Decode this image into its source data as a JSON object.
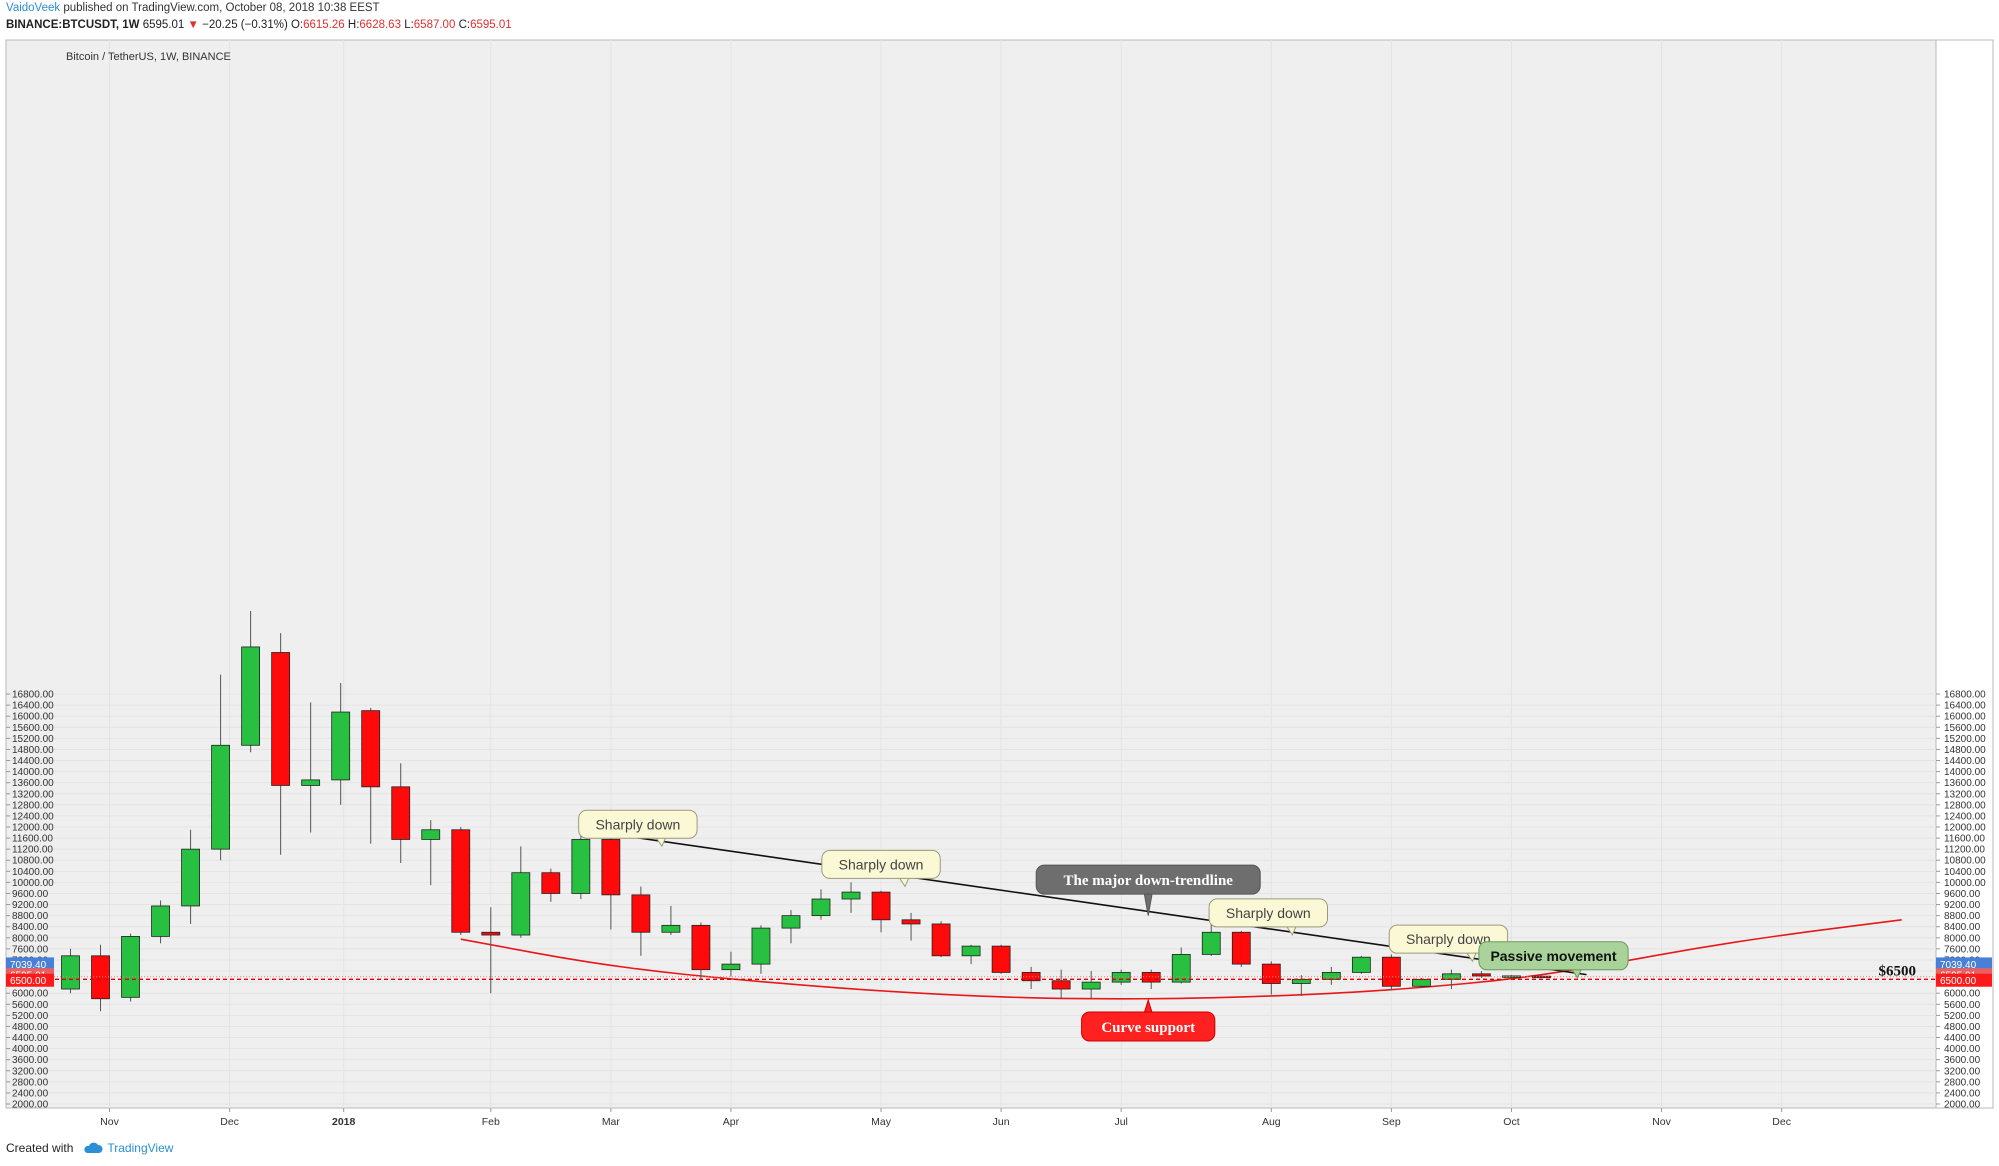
{
  "header": {
    "user": "VaidoVeek",
    "published": "published on TradingView.com, October 08, 2018 10:38 EEST",
    "symbol": "BINANCE:BTCUSDT, 1W",
    "last": "6595.01",
    "change": "−20.25 (−0.31%)",
    "o_label": "O:",
    "o": "6615.26",
    "h_label": "H:",
    "h": "6628.63",
    "l_label": "L:",
    "l": "6587.00",
    "c_label": "C:",
    "c": "6595.01"
  },
  "footer": {
    "created_with": "Created with",
    "brand": "TradingView"
  },
  "colors": {
    "up": "#27c040",
    "down": "#ff0a0a",
    "background": "#efefef",
    "trendline": "#111111",
    "curve": "#e81818"
  },
  "chart_data": {
    "type": "candlestick",
    "title": "Bitcoin / TetherUS, 1W, BINANCE",
    "ylim": [
      1900,
      17200
    ],
    "y_ticks": [
      "16800.00",
      "16400.00",
      "16000.00",
      "15600.00",
      "15200.00",
      "14800.00",
      "14400.00",
      "14000.00",
      "13600.00",
      "13200.00",
      "12800.00",
      "12400.00",
      "12000.00",
      "11600.00",
      "11200.00",
      "10800.00",
      "10400.00",
      "10000.00",
      "9600.00",
      "9200.00",
      "8800.00",
      "8400.00",
      "8000.00",
      "7600.00",
      "7200.00",
      "6800.00",
      "6400.00",
      "6000.00",
      "5600.00",
      "5200.00",
      "4800.00",
      "4400.00",
      "4000.00",
      "3600.00",
      "3200.00",
      "2800.00",
      "2400.00",
      "2000.00"
    ],
    "x_labels": [
      {
        "label": "Nov",
        "week": 1.3
      },
      {
        "label": "Dec",
        "week": 5.3
      },
      {
        "label": "2018",
        "week": 9.1
      },
      {
        "label": "Feb",
        "week": 14.0
      },
      {
        "label": "Mar",
        "week": 18.0
      },
      {
        "label": "Apr",
        "week": 22.0
      },
      {
        "label": "May",
        "week": 27.0
      },
      {
        "label": "Jun",
        "week": 31.0
      },
      {
        "label": "Jul",
        "week": 35.0
      },
      {
        "label": "Aug",
        "week": 40.0
      },
      {
        "label": "Sep",
        "week": 44.0
      },
      {
        "label": "Oct",
        "week": 48.0
      },
      {
        "label": "Nov",
        "week": 53.0
      },
      {
        "label": "Dec",
        "week": 57.0
      }
    ],
    "candles": [
      {
        "o": 6150,
        "h": 7600,
        "l": 6000,
        "c": 7350
      },
      {
        "o": 7350,
        "h": 7750,
        "l": 5350,
        "c": 5800
      },
      {
        "o": 5850,
        "h": 8150,
        "l": 5700,
        "c": 8050
      },
      {
        "o": 8050,
        "h": 9350,
        "l": 7800,
        "c": 9150
      },
      {
        "o": 9150,
        "h": 11900,
        "l": 8500,
        "c": 11200
      },
      {
        "o": 11200,
        "h": 17500,
        "l": 10800,
        "c": 14950
      },
      {
        "o": 14950,
        "h": 19800,
        "l": 14700,
        "c": 18500
      },
      {
        "o": 18300,
        "h": 19000,
        "l": 11000,
        "c": 13500
      },
      {
        "o": 13500,
        "h": 16500,
        "l": 11800,
        "c": 13700
      },
      {
        "o": 13700,
        "h": 17200,
        "l": 12800,
        "c": 16150
      },
      {
        "o": 16200,
        "h": 16300,
        "l": 11400,
        "c": 13450
      },
      {
        "o": 13450,
        "h": 14300,
        "l": 10700,
        "c": 11550
      },
      {
        "o": 11550,
        "h": 12250,
        "l": 9900,
        "c": 11900
      },
      {
        "o": 11900,
        "h": 12000,
        "l": 8100,
        "c": 8200
      },
      {
        "o": 8200,
        "h": 9100,
        "l": 6000,
        "c": 8100
      },
      {
        "o": 8100,
        "h": 11300,
        "l": 8000,
        "c": 10350
      },
      {
        "o": 10350,
        "h": 10500,
        "l": 9300,
        "c": 9600
      },
      {
        "o": 9600,
        "h": 11750,
        "l": 9400,
        "c": 11550
      },
      {
        "o": 11550,
        "h": 11750,
        "l": 8300,
        "c": 9550
      },
      {
        "o": 9550,
        "h": 9850,
        "l": 7350,
        "c": 8200
      },
      {
        "o": 8200,
        "h": 9150,
        "l": 8100,
        "c": 8450
      },
      {
        "o": 8450,
        "h": 8550,
        "l": 6500,
        "c": 6850
      },
      {
        "o": 6850,
        "h": 7500,
        "l": 6600,
        "c": 7050
      },
      {
        "o": 7050,
        "h": 8450,
        "l": 6700,
        "c": 8350
      },
      {
        "o": 8350,
        "h": 9000,
        "l": 7800,
        "c": 8800
      },
      {
        "o": 8800,
        "h": 9750,
        "l": 8650,
        "c": 9400
      },
      {
        "o": 9400,
        "h": 10000,
        "l": 8900,
        "c": 9650
      },
      {
        "o": 9650,
        "h": 9700,
        "l": 8200,
        "c": 8650
      },
      {
        "o": 8650,
        "h": 8900,
        "l": 7900,
        "c": 8500
      },
      {
        "o": 8500,
        "h": 8600,
        "l": 7300,
        "c": 7350
      },
      {
        "o": 7350,
        "h": 7750,
        "l": 7050,
        "c": 7700
      },
      {
        "o": 7700,
        "h": 7750,
        "l": 6700,
        "c": 6750
      },
      {
        "o": 6750,
        "h": 6950,
        "l": 6150,
        "c": 6450
      },
      {
        "o": 6450,
        "h": 6850,
        "l": 5800,
        "c": 6150
      },
      {
        "o": 6150,
        "h": 6800,
        "l": 5800,
        "c": 6400
      },
      {
        "o": 6400,
        "h": 6850,
        "l": 6300,
        "c": 6750
      },
      {
        "o": 6750,
        "h": 6850,
        "l": 6150,
        "c": 6400
      },
      {
        "o": 6400,
        "h": 7650,
        "l": 6350,
        "c": 7400
      },
      {
        "o": 7400,
        "h": 8500,
        "l": 7350,
        "c": 8200
      },
      {
        "o": 8200,
        "h": 8250,
        "l": 6950,
        "c": 7050
      },
      {
        "o": 7050,
        "h": 7150,
        "l": 5950,
        "c": 6350
      },
      {
        "o": 6350,
        "h": 6650,
        "l": 5900,
        "c": 6500
      },
      {
        "o": 6500,
        "h": 6950,
        "l": 6300,
        "c": 6750
      },
      {
        "o": 6750,
        "h": 7350,
        "l": 6700,
        "c": 7300
      },
      {
        "o": 7300,
        "h": 7400,
        "l": 6100,
        "c": 6250
      },
      {
        "o": 6250,
        "h": 6550,
        "l": 6200,
        "c": 6500
      },
      {
        "o": 6500,
        "h": 6850,
        "l": 6150,
        "c": 6700
      },
      {
        "o": 6700,
        "h": 6800,
        "l": 6550,
        "c": 6620
      },
      {
        "o": 6610,
        "h": 6650,
        "l": 6600,
        "c": 6625
      },
      {
        "o": 6615,
        "h": 6629,
        "l": 6587,
        "c": 6595
      }
    ],
    "trendline": [
      {
        "week": 18.0,
        "price": 11750
      },
      {
        "week": 50.5,
        "price": 6670
      }
    ],
    "curve": [
      {
        "week": 13.0,
        "price": 7950
      },
      {
        "week": 18.0,
        "price": 6950
      },
      {
        "week": 23.0,
        "price": 6400
      },
      {
        "week": 28.0,
        "price": 6000
      },
      {
        "week": 32.0,
        "price": 5820
      },
      {
        "week": 35.0,
        "price": 5790
      },
      {
        "week": 38.0,
        "price": 5820
      },
      {
        "week": 42.0,
        "price": 5980
      },
      {
        "week": 45.0,
        "price": 6200
      },
      {
        "week": 48.0,
        "price": 6500
      },
      {
        "week": 51.0,
        "price": 7000
      },
      {
        "week": 54.0,
        "price": 7600
      },
      {
        "week": 57.0,
        "price": 8100
      },
      {
        "week": 61.0,
        "price": 8650
      }
    ],
    "hlines": [
      {
        "price": 6500,
        "label": "$6500",
        "style": "dashed"
      },
      {
        "price": 6595,
        "style": "dotted"
      }
    ],
    "price_badges": [
      {
        "price": 7039.4,
        "text": "7039.40",
        "color": "#4a7fd8"
      },
      {
        "price": 6650,
        "text": "6595.01",
        "color": "#e86060"
      },
      {
        "price": 6450,
        "text": "6500.00",
        "color": "#ff1a1a"
      }
    ],
    "annotations": [
      {
        "text": "Sharply down",
        "week": 18.9,
        "price": 12100,
        "style": "cream",
        "tail": "down"
      },
      {
        "text": "Sharply down",
        "week": 27.0,
        "price": 10650,
        "style": "cream",
        "tail": "down"
      },
      {
        "text": "The major down-trendline",
        "week": 35.9,
        "price": 10100,
        "style": "dark",
        "tail": "down-long",
        "tail_to_price": 8800
      },
      {
        "text": "Sharply down",
        "week": 39.9,
        "price": 8900,
        "style": "cream",
        "tail": "down"
      },
      {
        "text": "Sharply down",
        "week": 45.9,
        "price": 7950,
        "style": "cream",
        "tail": "down"
      },
      {
        "text": "Passive movement",
        "week": 49.4,
        "price": 7350,
        "style": "green",
        "tail": "down"
      },
      {
        "text": "Curve support",
        "week": 35.9,
        "price": 4800,
        "style": "red",
        "tail": "up-long",
        "tail_to_price": 5750
      }
    ]
  }
}
